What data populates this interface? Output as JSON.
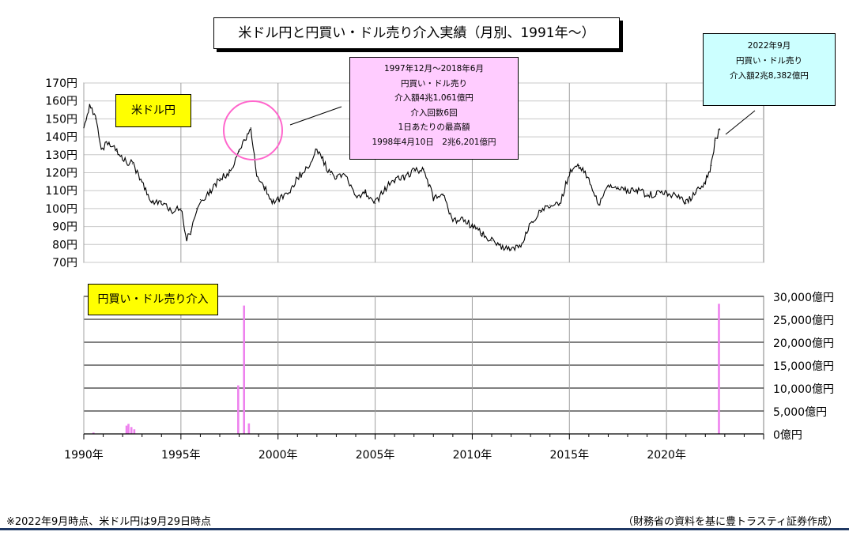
{
  "chart_title": "米ドル円と円買い・ドル売り介入実績（月別、1991年～）",
  "footnote": "※2022年9月時点、米ドル円は9月29日時点",
  "source": "（財務省の資料を基に豊トラスティ証券作成）",
  "colors": {
    "line": "#000000",
    "intervention_bar": "#ee82ee",
    "highlight_circle": "#ff66cc",
    "label_yellow": "#ffff00",
    "callout_pink": "#ffccff",
    "callout_cyan": "#ccffff",
    "rule": "#1f3864"
  },
  "callouts": {
    "period_1998": [
      "1997年12月～2018年6月",
      "円買い・ドル売り",
      "介入額4兆1,061億円",
      "介入回数6回",
      "1日あたりの最高額",
      "1998年4月10日　2兆6,201億円"
    ],
    "period_2022": [
      "2022年9月",
      "円買い・ドル売り",
      "介入額2兆8,382億円"
    ]
  },
  "chart_data": [
    {
      "type": "line",
      "label": "米ドル円",
      "ylim": [
        70,
        170
      ],
      "yticks": [
        70,
        80,
        90,
        100,
        110,
        120,
        130,
        140,
        150,
        160,
        170
      ],
      "ytick_labels": [
        "70円",
        "80円",
        "90円",
        "100円",
        "110円",
        "120円",
        "130円",
        "140円",
        "150円",
        "160円",
        "170円"
      ],
      "xlim": [
        1990,
        2025
      ],
      "x": [
        1990.0,
        1990.3,
        1990.6,
        1990.9,
        1991.3,
        1991.7,
        1992.0,
        1992.5,
        1993.0,
        1993.5,
        1994.0,
        1994.5,
        1995.0,
        1995.3,
        1995.5,
        1995.8,
        1996.0,
        1996.5,
        1997.0,
        1997.5,
        1998.0,
        1998.3,
        1998.6,
        1998.9,
        1999.3,
        1999.7,
        2000.0,
        2000.5,
        2001.0,
        2001.5,
        2002.0,
        2002.3,
        2002.7,
        2003.0,
        2003.5,
        2004.0,
        2004.5,
        2005.0,
        2005.5,
        2006.0,
        2006.5,
        2007.0,
        2007.5,
        2008.0,
        2008.5,
        2009.0,
        2009.5,
        2010.0,
        2010.5,
        2011.0,
        2011.5,
        2012.0,
        2012.5,
        2013.0,
        2013.5,
        2014.0,
        2014.5,
        2015.0,
        2015.5,
        2016.0,
        2016.5,
        2017.0,
        2017.5,
        2018.0,
        2018.5,
        2019.0,
        2019.5,
        2020.0,
        2020.5,
        2021.0,
        2021.5,
        2022.0,
        2022.3,
        2022.5,
        2022.75
      ],
      "y": [
        145,
        158,
        150,
        133,
        137,
        132,
        127,
        125,
        115,
        104,
        104,
        99,
        100,
        83,
        87,
        100,
        105,
        109,
        117,
        120,
        132,
        138,
        145,
        118,
        112,
        104,
        105,
        108,
        117,
        123,
        133,
        127,
        119,
        118,
        118,
        107,
        109,
        103,
        111,
        116,
        117,
        121,
        122,
        106,
        108,
        93,
        95,
        90,
        86,
        82,
        78,
        77,
        79,
        92,
        98,
        102,
        102,
        120,
        124,
        117,
        102,
        113,
        112,
        110,
        110,
        108,
        108,
        109,
        107,
        103,
        109,
        115,
        124,
        138,
        144
      ]
    },
    {
      "type": "bar",
      "label": "円買い・ドル売り介入",
      "ylim": [
        0,
        30000
      ],
      "yticks": [
        0,
        5000,
        10000,
        15000,
        20000,
        25000,
        30000
      ],
      "ytick_labels": [
        "0億円",
        "5,000億円",
        "10,000億円",
        "15,000億円",
        "20,000億円",
        "25,000億円",
        "30,000億円"
      ],
      "x_tick_labels": [
        "1990年",
        "1995年",
        "2000年",
        "2005年",
        "2010年",
        "2015年",
        "2020年"
      ],
      "x_ticks": [
        1990,
        1995,
        2000,
        2005,
        2010,
        2015,
        2020
      ],
      "x": [
        1990.5,
        1992.2,
        1992.3,
        1992.45,
        1992.6,
        1997.95,
        1998.25,
        1998.5,
        2022.7
      ],
      "values": [
        300,
        1800,
        2200,
        1500,
        1000,
        10591,
        28000,
        2300,
        28382
      ]
    }
  ]
}
